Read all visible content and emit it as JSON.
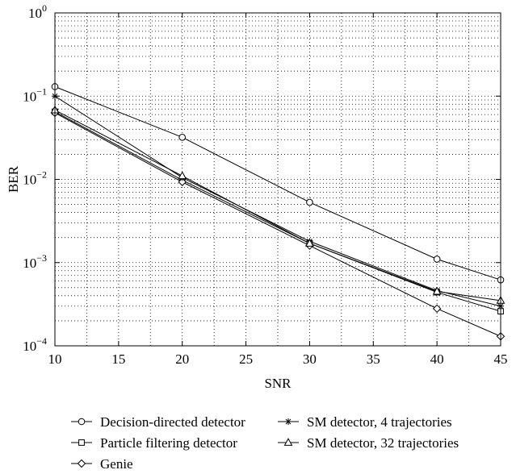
{
  "chart_data": {
    "type": "line",
    "title": "",
    "xlabel": "SNR",
    "ylabel": "BER",
    "x": [
      10,
      20,
      30,
      40,
      45
    ],
    "xlim": [
      10,
      45
    ],
    "ylim": [
      0.0001,
      1
    ],
    "yscale": "log",
    "grid": true,
    "x_ticks": [
      10,
      15,
      20,
      25,
      30,
      35,
      40,
      45
    ],
    "x_tick_labels": [
      "10",
      "15",
      "20",
      "25",
      "30",
      "35",
      "40",
      "45"
    ],
    "y_ticks": [
      0.0001,
      0.001,
      0.01,
      0.1,
      1
    ],
    "y_tick_labels": [
      {
        "base": "10",
        "exp": "−4"
      },
      {
        "base": "10",
        "exp": "−3"
      },
      {
        "base": "10",
        "exp": "−2"
      },
      {
        "base": "10",
        "exp": "−1"
      },
      {
        "base": "10",
        "exp": "0"
      }
    ],
    "legend_position": "bottom",
    "series": [
      {
        "name": "Decision-directed detector",
        "marker": "circle",
        "values": [
          0.13,
          0.032,
          0.0053,
          0.0011,
          0.00062
        ]
      },
      {
        "name": "Particle filtering detector",
        "marker": "square",
        "values": [
          0.065,
          0.0098,
          0.0017,
          0.00044,
          0.00026
        ]
      },
      {
        "name": "Genie",
        "marker": "diamond",
        "values": [
          0.063,
          0.0093,
          0.0016,
          0.00028,
          0.00013
        ]
      },
      {
        "name": "SM detector, 4 trajectories",
        "marker": "star",
        "values": [
          0.1,
          0.0105,
          0.0018,
          0.00046,
          0.0003
        ]
      },
      {
        "name": "SM detector, 32 trajectories",
        "marker": "triangle",
        "values": [
          0.068,
          0.011,
          0.0017,
          0.00045,
          0.00035
        ]
      }
    ]
  }
}
